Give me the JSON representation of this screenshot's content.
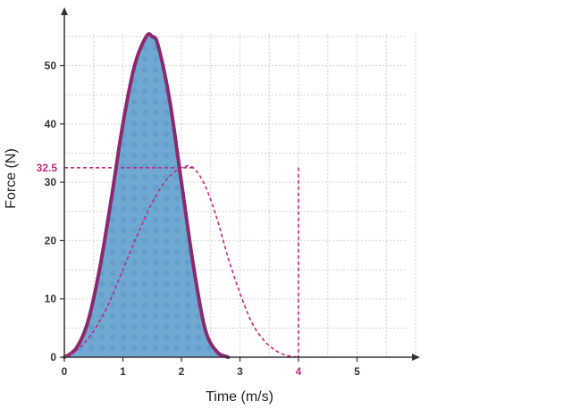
{
  "chart_data": {
    "type": "area",
    "xlabel": "Time (m/s)",
    "ylabel": "Force (N)",
    "xlim": [
      0,
      6
    ],
    "ylim": [
      0,
      56
    ],
    "x_ticks": [
      0,
      1,
      2,
      3,
      4,
      5
    ],
    "y_ticks": [
      0,
      10,
      20,
      30,
      40,
      50
    ],
    "grid": true,
    "series": [
      {
        "style": "solid-filled",
        "x": [
          0,
          0.2,
          0.4,
          0.6,
          0.8,
          1.0,
          1.2,
          1.4,
          1.5,
          1.6,
          1.8,
          2.0,
          2.2,
          2.4,
          2.6,
          2.8
        ],
        "y": [
          0,
          1.5,
          6,
          15,
          27,
          40,
          50,
          55,
          55,
          53.5,
          44,
          30,
          16,
          5,
          1,
          0
        ]
      },
      {
        "style": "dashed",
        "x": [
          0,
          0.25,
          0.5,
          0.75,
          1.0,
          1.25,
          1.5,
          1.75,
          2.0,
          2.2,
          2.4,
          2.6,
          2.8,
          3.0,
          3.2,
          3.4,
          3.6,
          3.8,
          4.0
        ],
        "y": [
          0,
          1.5,
          4.5,
          9,
          15,
          21,
          26.5,
          30.5,
          32.5,
          32.5,
          29.5,
          24,
          17,
          11,
          6,
          3,
          1.2,
          0.3,
          0
        ]
      }
    ],
    "highlights": {
      "y_value": 32.5,
      "y_label": "32.5",
      "x_value": 4,
      "x_label": "4"
    },
    "colors": {
      "curve": "#8b2a6e",
      "fill": "#6fa9d2",
      "highlight": "#c2287e",
      "grid": "#cfcfcf",
      "axis": "#333333"
    }
  }
}
